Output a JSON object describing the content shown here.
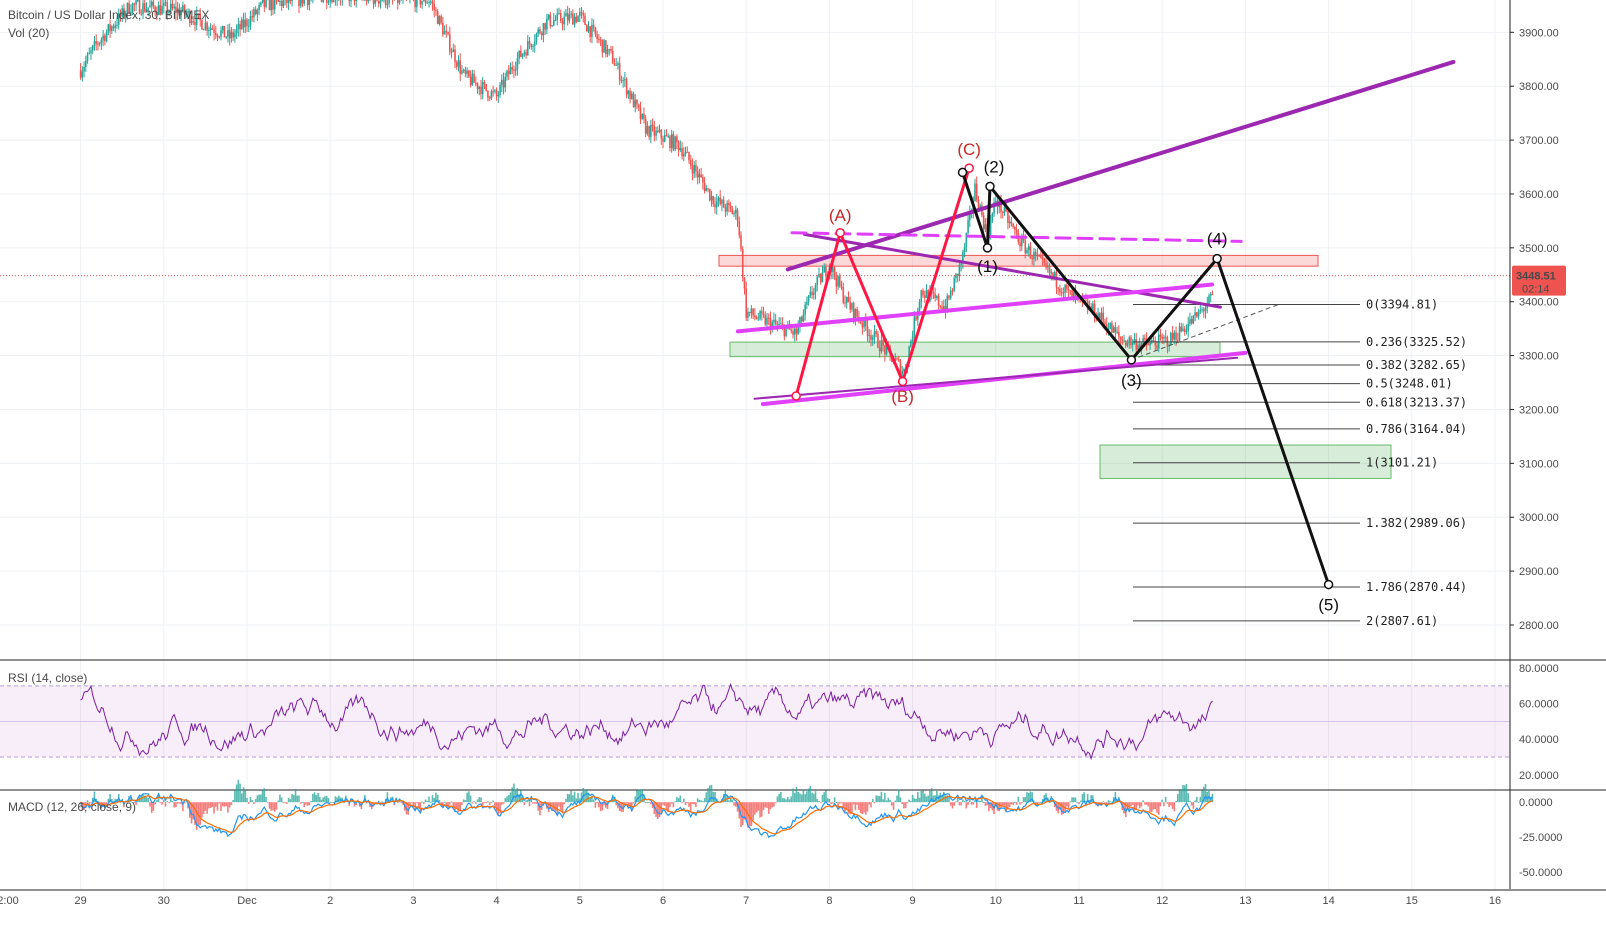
{
  "header": {
    "title": "Bitcoin / US Dollar Index, 30, BITMEX",
    "volume_label": "Vol (20)"
  },
  "price_badge": {
    "value": "3448.51",
    "countdown": "02:14",
    "color": "#ef5350"
  },
  "rsi_label": "RSI (14, close)",
  "macd_label": "MACD (12, 26, close, 9)",
  "x_axis_labels": [
    "2:00",
    "29",
    "30",
    "Dec",
    "2",
    "3",
    "4",
    "5",
    "6",
    "7",
    "8",
    "9",
    "10",
    "11",
    "12",
    "13",
    "14",
    "15",
    "16"
  ],
  "colors": {
    "up": "#26a69a",
    "down": "#ef5350",
    "purple": "#9c27b0",
    "magenta": "#e040fb",
    "wave_red": "#ff1744",
    "wave_black": "#111111",
    "rsi_line": "#7b1fa2",
    "macd": "#2196f3",
    "signal": "#ff6d00"
  },
  "chart_data": [
    {
      "type": "candlestick",
      "title": "Bitcoin / US Dollar Index, 30, BITMEX",
      "x": [
        "2:00",
        "29",
        "30",
        "Dec",
        "2",
        "3",
        "4",
        "5",
        "6",
        "7",
        "8",
        "9",
        "10",
        "11",
        "12",
        "13",
        "14",
        "15",
        "16"
      ],
      "y_ticks": [
        "3900.00",
        "3800.00",
        "3700.00",
        "3600.00",
        "3500.00",
        "3400.00",
        "3300.00",
        "3200.00",
        "3100.00",
        "3000.00",
        "2900.00",
        "2800.00"
      ],
      "ylim": [
        2735,
        3960
      ],
      "last_price": 3448.51,
      "wave_labels": {
        "corrective": [
          {
            "label": "(A)",
            "day": 8.13,
            "price": 3520
          },
          {
            "label": "(B)",
            "day": 8.88,
            "price": 3258
          },
          {
            "label": "(C)",
            "day": 9.68,
            "price": 3643
          }
        ],
        "impulse": [
          {
            "label": "(1)",
            "day": 9.9,
            "price": 3500
          },
          {
            "label": "(2)",
            "day": 9.93,
            "price": 3614
          },
          {
            "label": "(3)",
            "day": 11.63,
            "price": 3292
          },
          {
            "label": "(4)",
            "day": 12.66,
            "price": 3480
          },
          {
            "label": "(5)",
            "day": 14.0,
            "price": 2875
          }
        ]
      },
      "fibonacci_levels": [
        {
          "ratio": "0",
          "price": "3394.81"
        },
        {
          "ratio": "0.236",
          "price": "3325.52"
        },
        {
          "ratio": "0.382",
          "price": "3282.65"
        },
        {
          "ratio": "0.5",
          "price": "3248.01"
        },
        {
          "ratio": "0.618",
          "price": "3213.37"
        },
        {
          "ratio": "0.786",
          "price": "3164.04"
        },
        {
          "ratio": "1",
          "price": "3101.21"
        },
        {
          "ratio": "1.382",
          "price": "2989.06"
        },
        {
          "ratio": "1.786",
          "price": "2870.44"
        },
        {
          "ratio": "2",
          "price": "2807.61"
        }
      ],
      "zones": [
        {
          "color": "red",
          "price_low": 3466,
          "price_high": 3486
        },
        {
          "color": "green",
          "price_low": 3298,
          "price_high": 3325
        },
        {
          "color": "green",
          "price_low": 3072,
          "price_high": 3134
        }
      ],
      "grid": true
    },
    {
      "type": "line",
      "title": "RSI (14, close)",
      "y_ticks": [
        "80.0000",
        "60.0000",
        "40.0000",
        "20.0000"
      ],
      "band": [
        30,
        70
      ],
      "ylim": [
        12,
        84
      ]
    },
    {
      "type": "bar",
      "title": "MACD (12, 26, close, 9)",
      "y_ticks": [
        "0.0000",
        "-25.0000",
        "-50.0000"
      ],
      "ylim": [
        -62,
        8
      ]
    }
  ]
}
